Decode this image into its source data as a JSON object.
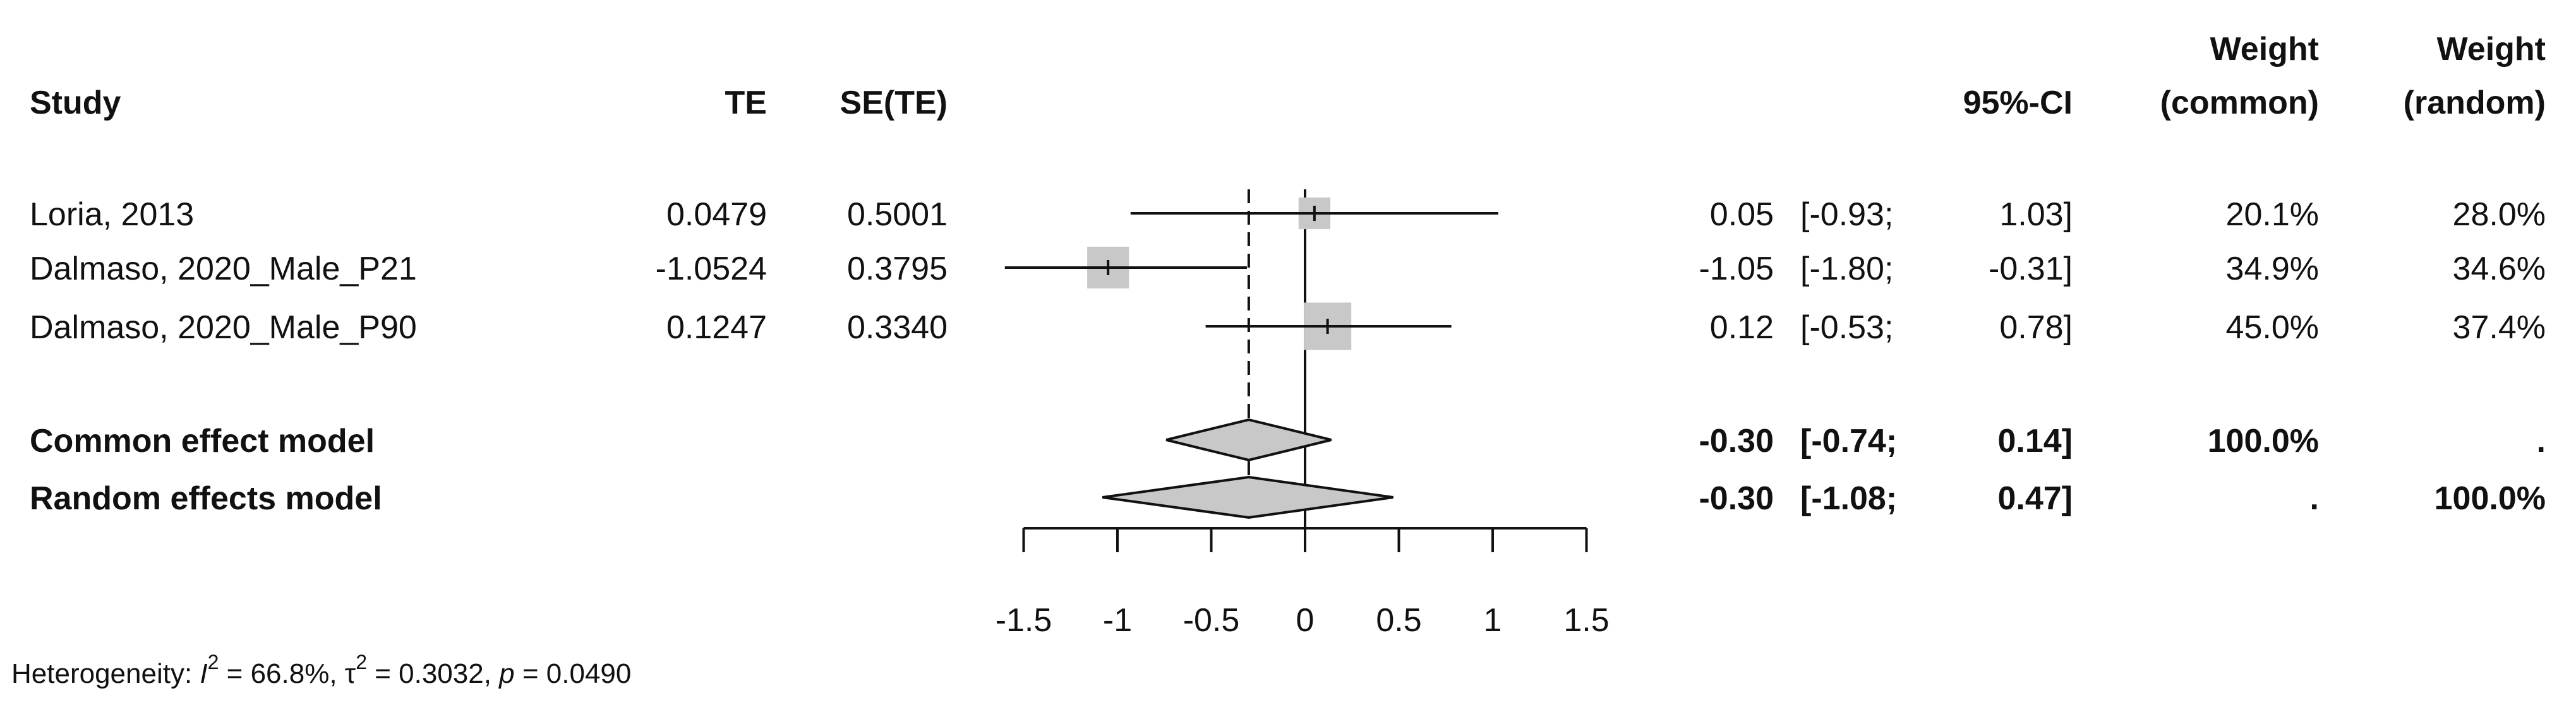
{
  "chart_data": {
    "type": "forest",
    "headers": {
      "study": "Study",
      "te": "TE",
      "se": "SE(TE)",
      "ci": "95%-CI",
      "weight_common_1": "Weight",
      "weight_common_2": "(common)",
      "weight_random_1": "Weight",
      "weight_random_2": "(random)"
    },
    "studies": [
      {
        "name": "Loria, 2013",
        "te": "0.0479",
        "se": "0.5001",
        "est": "0.05",
        "ci_low": "-0.93",
        "ci_high": "1.03",
        "w_common": "20.1%",
        "w_random": "28.0%"
      },
      {
        "name": "Dalmaso, 2020_Male_P21",
        "te": "-1.0524",
        "se": "0.3795",
        "est": "-1.05",
        "ci_low": "-1.80",
        "ci_high": "-0.31",
        "w_common": "34.9%",
        "w_random": "34.6%"
      },
      {
        "name": "Dalmaso, 2020_Male_P90",
        "te": "0.1247",
        "se": "0.3340",
        "est": "0.12",
        "ci_low": "-0.53",
        "ci_high": "0.78",
        "w_common": "45.0%",
        "w_random": "37.4%"
      }
    ],
    "pooled": [
      {
        "name": "Common effect model",
        "est": "-0.30",
        "ci_low": "-0.74",
        "ci_high": "0.14",
        "w_common": "100.0%",
        "w_random": "."
      },
      {
        "name": "Random effects model",
        "est": "-0.30",
        "ci_low": "-1.08",
        "ci_high": "0.47",
        "w_common": ".",
        "w_random": "100.0%"
      }
    ],
    "x_axis": {
      "ticks": [
        "-1.5",
        "-1",
        "-0.5",
        "0",
        "0.5",
        "1",
        "1.5"
      ],
      "range": [
        -1.5,
        1.5
      ]
    },
    "reference_line": 0,
    "pooled_line": -0.3,
    "heterogeneity": {
      "label": "Heterogeneity: ",
      "i2_symbol": "I",
      "sup": "2",
      "i2_value": " = 66.8%, ",
      "tau_symbol": "τ",
      "tau_value": " = 0.3032, ",
      "p_symbol": "p",
      "p_value": " = 0.0490"
    },
    "colors": {
      "box": "#c8c8c8",
      "diamond": "#c8c8c8",
      "line": "#111111"
    }
  }
}
